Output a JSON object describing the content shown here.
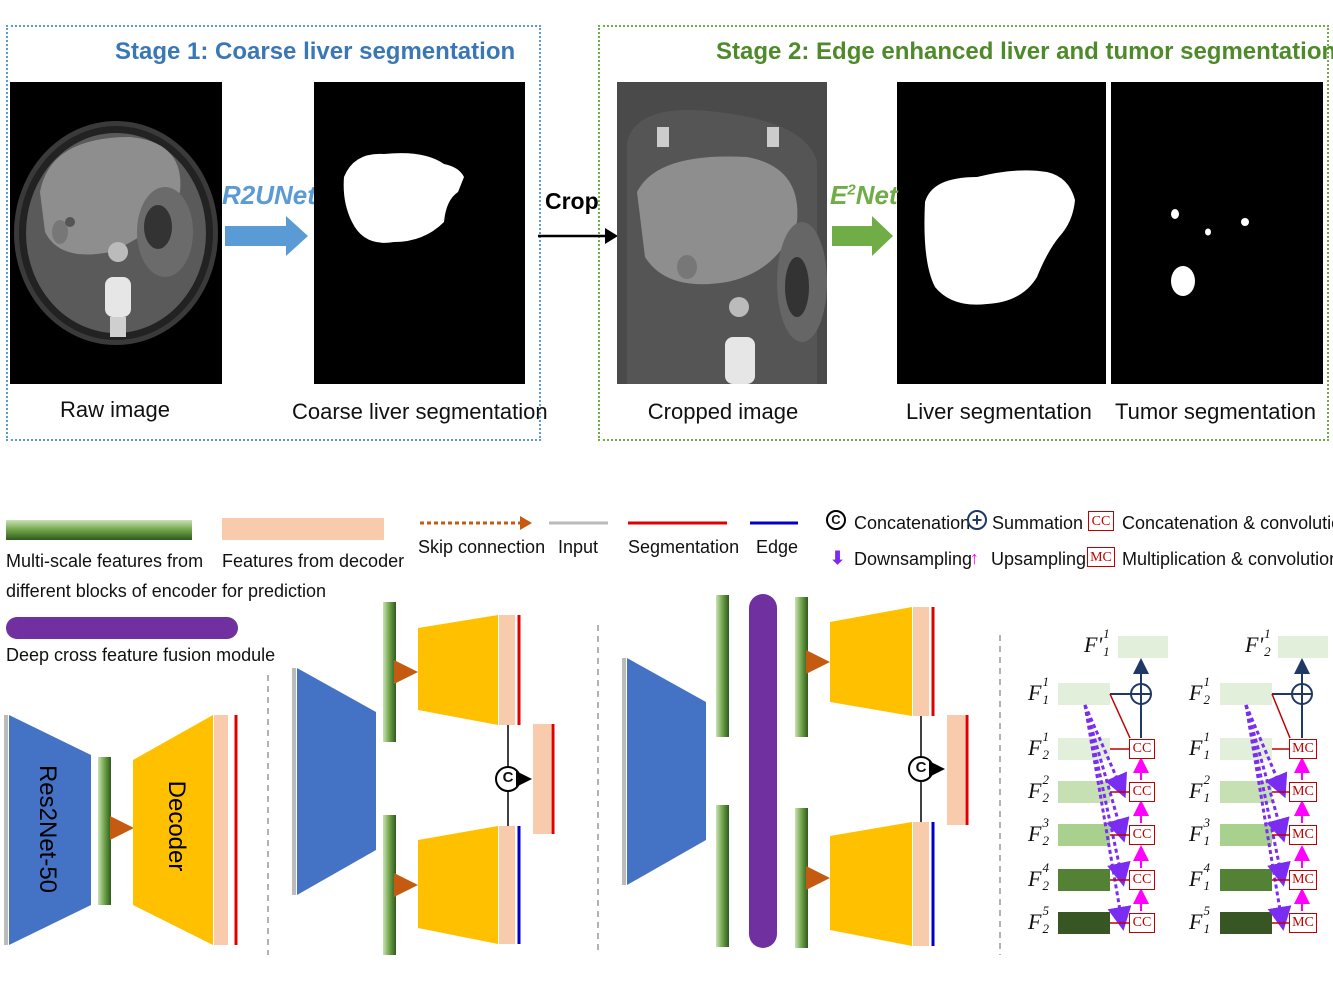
{
  "stage1": {
    "title": "Stage 1: Coarse liver segmentation",
    "border_color": "#5b9bd5",
    "title_color": "#3a78b5",
    "network": "R2UNet",
    "captions": [
      "Raw image",
      "Coarse liver segmentation"
    ]
  },
  "crop_label": "Crop",
  "stage2": {
    "title": "Stage 2: Edge enhanced liver and tumor segmentation",
    "border_color": "#70ad47",
    "title_color": "#4e8a2a",
    "network": "E",
    "network_sup": "2",
    "network_suffix": "Net",
    "captions": [
      "Cropped image",
      "Liver segmentation",
      "Tumor segmentation"
    ]
  },
  "legend": {
    "multiscale": [
      "Multi-scale features from",
      "different blocks of encoder"
    ],
    "decoder_features": [
      "Features from decoder",
      "for prediction"
    ],
    "fusion": "Deep cross feature fusion module",
    "skip": "Skip connection",
    "input": "Input",
    "segmentation": "Segmentation",
    "edge": "Edge",
    "concat_symbol": "C",
    "concat": "Concatenation",
    "sum_symbol": "+",
    "sum": "Summation",
    "cc_badge": "CC",
    "cc": "Concatenation & convolution",
    "down": "Downsampling",
    "up": "Upsampling",
    "mc_badge": "MC",
    "mc": "Multiplication & convolution"
  },
  "net1": {
    "encoder": "Res2Net-50",
    "decoder": "Decoder"
  },
  "colors": {
    "encoder_blue": "#4472c4",
    "decoder_yellow": "#ffc000",
    "feature_peach": "#f8cbad",
    "fusion_purple": "#7030a0",
    "segmentation_red": "#e00000",
    "edge_blue": "#0000cc",
    "skip_orange": "#c55a11",
    "down_purple": "#7a2cf0",
    "up_magenta": "#ff00ff",
    "badge_red": "#c00000"
  },
  "fusion_cc": {
    "badge": "CC",
    "out_label": "F'",
    "out_sub": "1",
    "out_sup": "1",
    "top": {
      "name": "F",
      "sub": "1",
      "sup": "1"
    },
    "rows": [
      {
        "name": "F",
        "sub": "2",
        "sup": "1"
      },
      {
        "name": "F",
        "sub": "2",
        "sup": "2"
      },
      {
        "name": "F",
        "sub": "2",
        "sup": "3"
      },
      {
        "name": "F",
        "sub": "2",
        "sup": "4"
      },
      {
        "name": "F",
        "sub": "2",
        "sup": "5"
      }
    ]
  },
  "fusion_mc": {
    "badge": "MC",
    "out_label": "F'",
    "out_sub": "2",
    "out_sup": "1",
    "top": {
      "name": "F",
      "sub": "2",
      "sup": "1"
    },
    "rows": [
      {
        "name": "F",
        "sub": "1",
        "sup": "1"
      },
      {
        "name": "F",
        "sub": "1",
        "sup": "2"
      },
      {
        "name": "F",
        "sub": "1",
        "sup": "3"
      },
      {
        "name": "F",
        "sub": "1",
        "sup": "4"
      },
      {
        "name": "F",
        "sub": "1",
        "sup": "5"
      }
    ]
  }
}
